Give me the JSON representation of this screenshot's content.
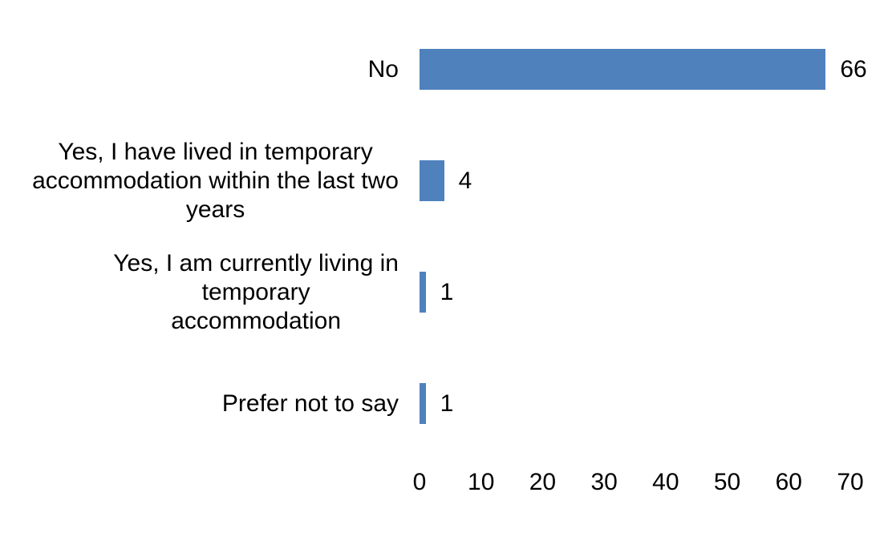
{
  "chart_data": {
    "type": "bar",
    "orientation": "horizontal",
    "title": "",
    "xlabel": "",
    "ylabel": "",
    "categories": [
      "No",
      "Yes, I have lived in temporary accommodation within the last two years",
      "Yes, I am currently living in temporary accommodation",
      "Prefer not to say"
    ],
    "category_lines": [
      [
        "No"
      ],
      [
        "Yes, I have lived in temporary",
        "accommodation within the last two",
        "years"
      ],
      [
        "Yes, I am currently living in",
        "temporary",
        "accommodation"
      ],
      [
        "Prefer not to say"
      ]
    ],
    "values": [
      66,
      4,
      1,
      1
    ],
    "data_labels": [
      "66",
      "4",
      "1",
      "1"
    ],
    "xlim": [
      0,
      70
    ],
    "xticks": [
      "0",
      "10",
      "20",
      "30",
      "40",
      "50",
      "60",
      "70"
    ],
    "grid": false,
    "legend": false
  },
  "colors": {
    "bar": "#4f81bd",
    "text": "#000000",
    "background": "#ffffff"
  }
}
